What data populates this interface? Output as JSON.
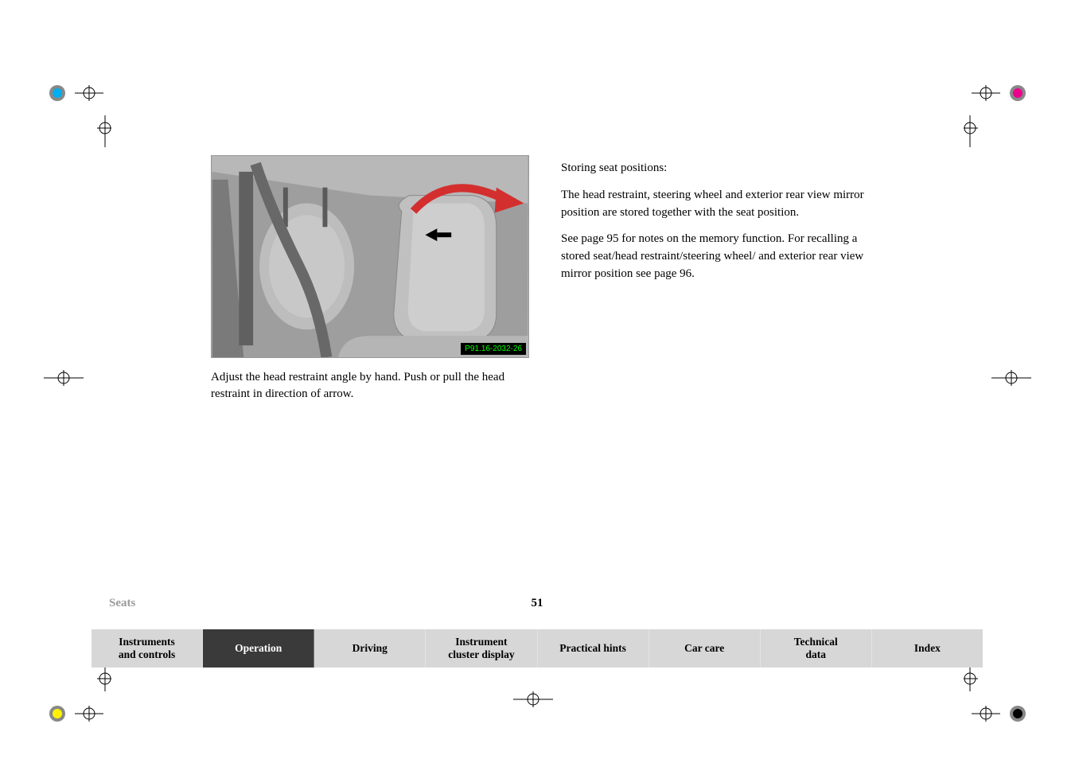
{
  "section_title": "Seats",
  "page_number": "51",
  "image_code": "P91.16-2032-26",
  "left_caption": "Adjust the head restraint angle by hand. Push or pull the head restraint in direction of arrow.",
  "right_paragraphs": {
    "p1": "Storing seat positions:",
    "p2": "The head restraint, steering wheel and exterior rear view mirror position are stored together with the seat position.",
    "p3": "See page 95 for notes on the memory function. For recalling a stored seat/head restraint/steering wheel/ and exterior rear view mirror position see page 96."
  },
  "nav_tabs": [
    {
      "label": "Instruments\nand controls",
      "style": "light"
    },
    {
      "label": "Operation",
      "style": "dark"
    },
    {
      "label": "Driving",
      "style": "light"
    },
    {
      "label": "Instrument\ncluster display",
      "style": "light"
    },
    {
      "label": "Practical hints",
      "style": "light"
    },
    {
      "label": "Car care",
      "style": "light"
    },
    {
      "label": "Technical\ndata",
      "style": "light"
    },
    {
      "label": "Index",
      "style": "light"
    }
  ],
  "colors": {
    "nav_light_bg": "#d7d7d7",
    "nav_dark_bg": "#3a3a3a",
    "section_title_color": "#9a9a9a",
    "arrow_color": "#d32f2f"
  }
}
